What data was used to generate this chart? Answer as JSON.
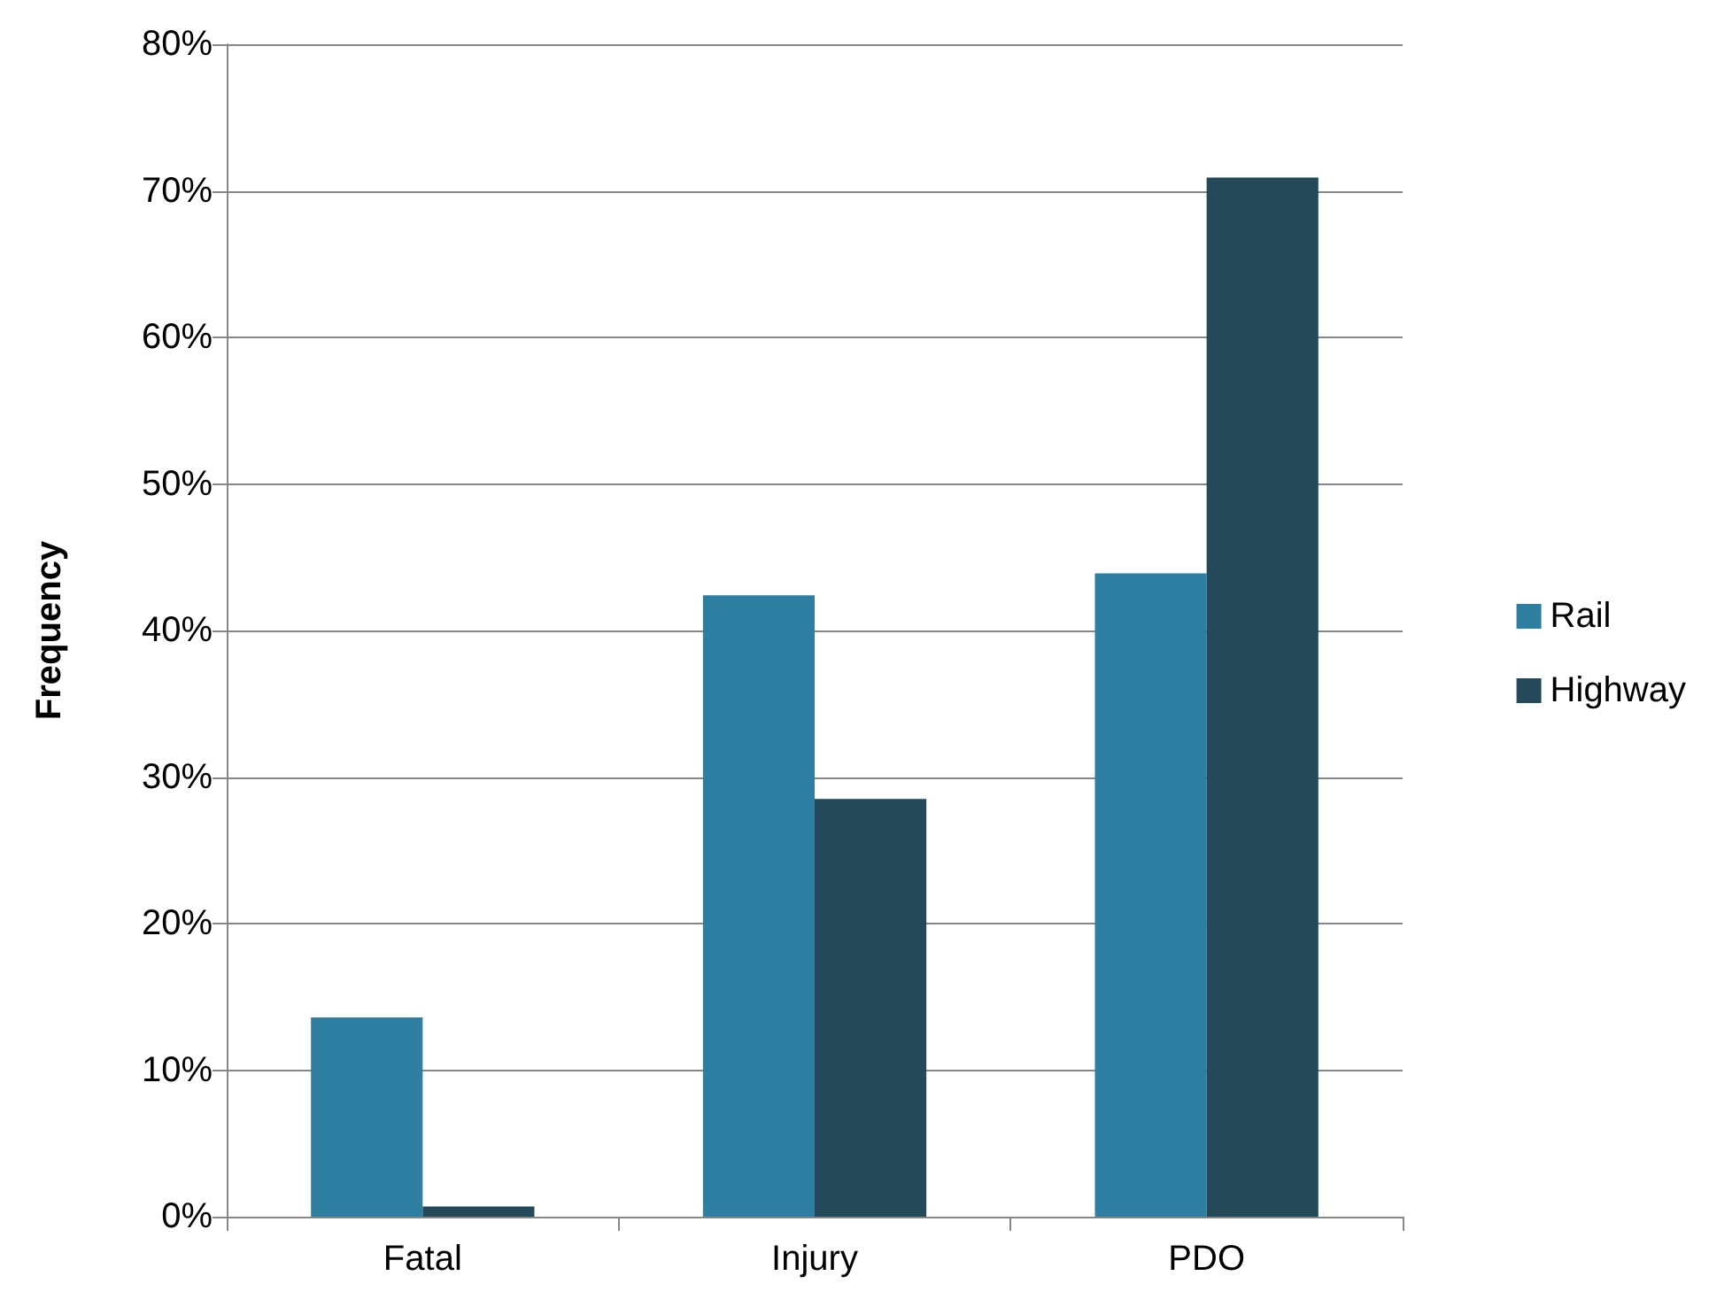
{
  "chart_data": {
    "type": "bar",
    "ylabel": "Frequency",
    "categories": [
      "Fatal",
      "Injury",
      "PDO"
    ],
    "series": [
      {
        "name": "Rail",
        "color": "#2e7ea1",
        "values": [
          13.6,
          42.4,
          43.9
        ]
      },
      {
        "name": "Highway",
        "color": "#244a5a",
        "values": [
          0.7,
          28.5,
          70.9
        ]
      }
    ],
    "ylim": [
      0,
      80
    ],
    "yticks": [
      {
        "value": 0,
        "label": "0%"
      },
      {
        "value": 10,
        "label": "10%"
      },
      {
        "value": 20,
        "label": "20%"
      },
      {
        "value": 30,
        "label": "30%"
      },
      {
        "value": 40,
        "label": "40%"
      },
      {
        "value": 50,
        "label": "50%"
      },
      {
        "value": 60,
        "label": "60%"
      },
      {
        "value": 70,
        "label": "70%"
      },
      {
        "value": 80,
        "label": "80%"
      }
    ],
    "grid": "y",
    "legend": "right"
  }
}
